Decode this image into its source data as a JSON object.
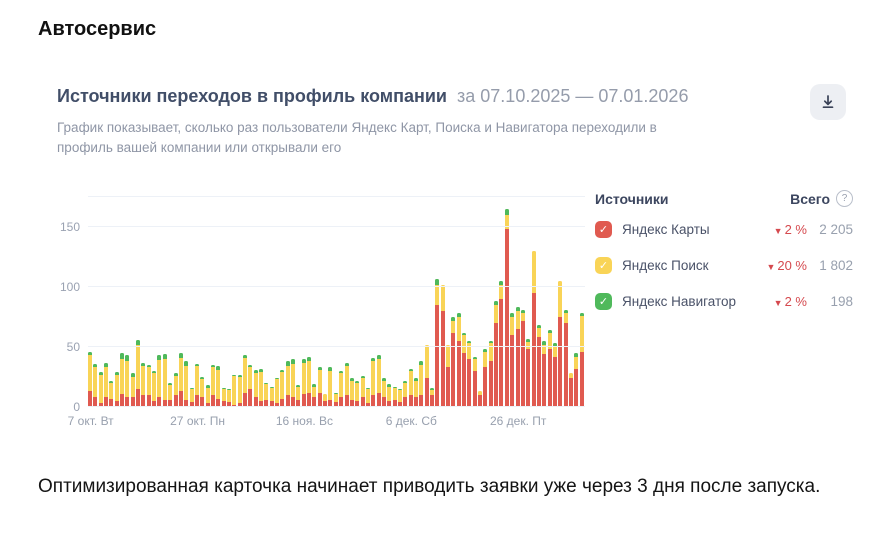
{
  "page": {
    "title": "Автосервис",
    "footer": "Оптимизированная карточка начинает приводить заявки уже через 3 дня после запуска."
  },
  "card": {
    "title": "Источники переходов в профиль компании",
    "period": "за 07.10.2025 — 07.01.2026",
    "description": "График показывает, сколько раз пользователи Яндекс Карт, Поиска и Навигатора переходили в профиль вашей компании или открывали его"
  },
  "legend": {
    "header_left": "Источники",
    "header_right": "Всего",
    "help_icon": "?",
    "items": [
      {
        "label": "Яндекс Карты",
        "color": "#e05a50",
        "delta_dir": "down",
        "delta": "2 %",
        "total": "2 205"
      },
      {
        "label": "Яндекс Поиск",
        "color": "#f9d457",
        "delta_dir": "down",
        "delta": "20 %",
        "total": "1 802"
      },
      {
        "label": "Яндекс Навигатор",
        "color": "#4fb95b",
        "delta_dir": "down",
        "delta": "2 %",
        "total": "198"
      }
    ]
  },
  "chart_data": {
    "type": "bar",
    "stacked": true,
    "title": "Источники переходов в профиль компании",
    "period": "07.10.2025 — 07.01.2026",
    "ylim": [
      0,
      175
    ],
    "y_ticks": [
      0,
      50,
      100,
      150
    ],
    "grid": true,
    "legend_position": "right",
    "x_tick_labels": [
      {
        "label": "7 окт. Вт",
        "index": 0
      },
      {
        "label": "27 окт. Пн",
        "index": 20
      },
      {
        "label": "16 ноя. Вс",
        "index": 40
      },
      {
        "label": "6 дек. Сб",
        "index": 60
      },
      {
        "label": "26 дек. Пт",
        "index": 80
      }
    ],
    "series": [
      {
        "name": "Яндекс Карты",
        "color": "#e05a50",
        "values": [
          13,
          8,
          3,
          8,
          7,
          5,
          11,
          8,
          8,
          15,
          10,
          10,
          5,
          8,
          6,
          6,
          10,
          13,
          6,
          4,
          10,
          8,
          3,
          10,
          7,
          5,
          4,
          2,
          3,
          12,
          15,
          8,
          5,
          6,
          5,
          3,
          7,
          10,
          8,
          6,
          11,
          12,
          8,
          12,
          5,
          6,
          4,
          8,
          10,
          6,
          5,
          8,
          3,
          10,
          12,
          8,
          5,
          6,
          4,
          8,
          10,
          8,
          10,
          24,
          10,
          85,
          80,
          33,
          62,
          55,
          45,
          40,
          30,
          10,
          33,
          38,
          70,
          90,
          148,
          60,
          65,
          72,
          48,
          95,
          58,
          44,
          48,
          42,
          75,
          70,
          24,
          32,
          46
        ]
      },
      {
        "name": "Яндекс Поиск",
        "color": "#f9d457",
        "values": [
          30,
          25,
          24,
          25,
          13,
          22,
          29,
          30,
          17,
          37,
          24,
          23,
          23,
          31,
          34,
          12,
          16,
          28,
          28,
          11,
          24,
          15,
          13,
          23,
          24,
          10,
          10,
          24,
          22,
          29,
          18,
          20,
          24,
          13,
          11,
          20,
          22,
          24,
          28,
          11,
          26,
          26,
          9,
          19,
          6,
          24,
          7,
          20,
          24,
          16,
          15,
          16,
          12,
          28,
          28,
          14,
          12,
          10,
          10,
          12,
          20,
          14,
          25,
          28,
          4,
          17,
          22,
          19,
          10,
          20,
          15,
          13,
          10,
          3,
          13,
          15,
          15,
          12,
          12,
          15,
          15,
          6,
          6,
          35,
          8,
          8,
          14,
          8,
          30,
          8,
          4,
          10,
          30
        ]
      },
      {
        "name": "Яндекс Навигатор",
        "color": "#4fb95b",
        "values": [
          3,
          3,
          2,
          4,
          2,
          2,
          5,
          5,
          3,
          4,
          3,
          2,
          2,
          4,
          4,
          2,
          2,
          4,
          4,
          1,
          2,
          2,
          2,
          2,
          3,
          1,
          1,
          1,
          2,
          2,
          2,
          3,
          3,
          1,
          1,
          1,
          2,
          4,
          4,
          1,
          3,
          4,
          2,
          2,
          0,
          3,
          1,
          2,
          3,
          2,
          2,
          2,
          1,
          3,
          3,
          2,
          2,
          1,
          1,
          2,
          2,
          2,
          3,
          0,
          2,
          5,
          0,
          0,
          3,
          3,
          2,
          2,
          2,
          0,
          2,
          2,
          3,
          3,
          5,
          3,
          3,
          3,
          3,
          0,
          2,
          3,
          2,
          3,
          0,
          3,
          0,
          3,
          2
        ]
      }
    ],
    "series_totals": [
      {
        "name": "Яндекс Карты",
        "total": 2205,
        "delta_percent": -2
      },
      {
        "name": "Яндекс Поиск",
        "total": 1802,
        "delta_percent": -20
      },
      {
        "name": "Яндекс Навигатор",
        "total": 198,
        "delta_percent": -2
      }
    ]
  }
}
